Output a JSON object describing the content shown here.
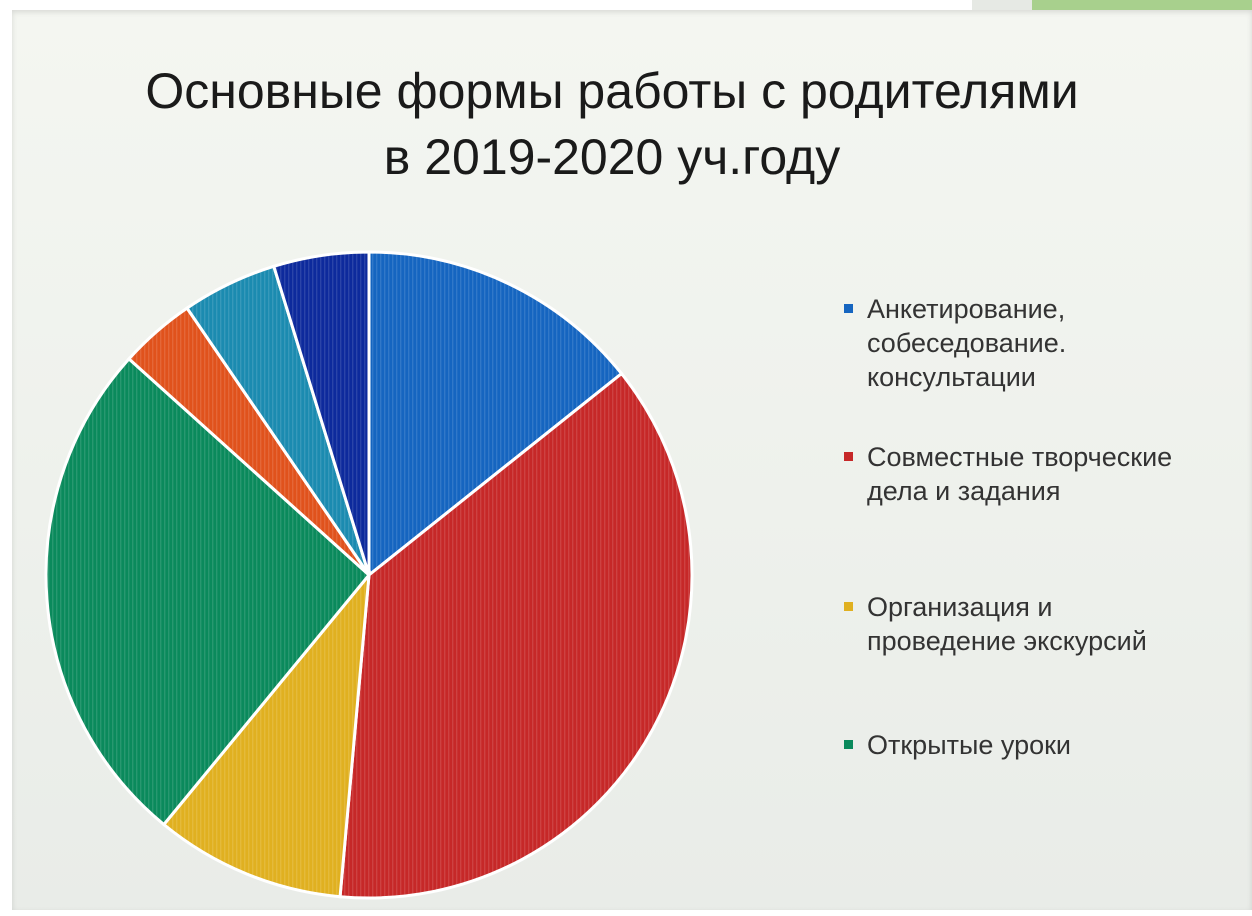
{
  "title": {
    "line1": "Основные формы работы с родителями",
    "line2": "в 2019-2020 уч.году"
  },
  "chart_data": {
    "type": "pie",
    "title": "Основные формы работы с родителями в 2019-2020 уч.году",
    "legend_position": "right",
    "slices": [
      {
        "label": "Анкетирование,\nсобеседование.\nконсультации",
        "value": 15,
        "color": "#1565c0",
        "in_legend": true
      },
      {
        "label": "Совместные творческие\nдела и задания",
        "value": 39,
        "color": "#c62828",
        "in_legend": true
      },
      {
        "label": "Организация и\nпроведение экскурсий",
        "value": 10,
        "color": "#e0b020",
        "in_legend": true
      },
      {
        "label": "Открытые уроки",
        "value": 27,
        "color": "#0a8a5c",
        "in_legend": true
      },
      {
        "label": "",
        "value": 4,
        "color": "#e0521c",
        "in_legend": false
      },
      {
        "label": "",
        "value": 5,
        "color": "#1b8bb0",
        "in_legend": false
      },
      {
        "label": "",
        "value": 5,
        "color": "#0d2a9c",
        "in_legend": false
      }
    ]
  }
}
